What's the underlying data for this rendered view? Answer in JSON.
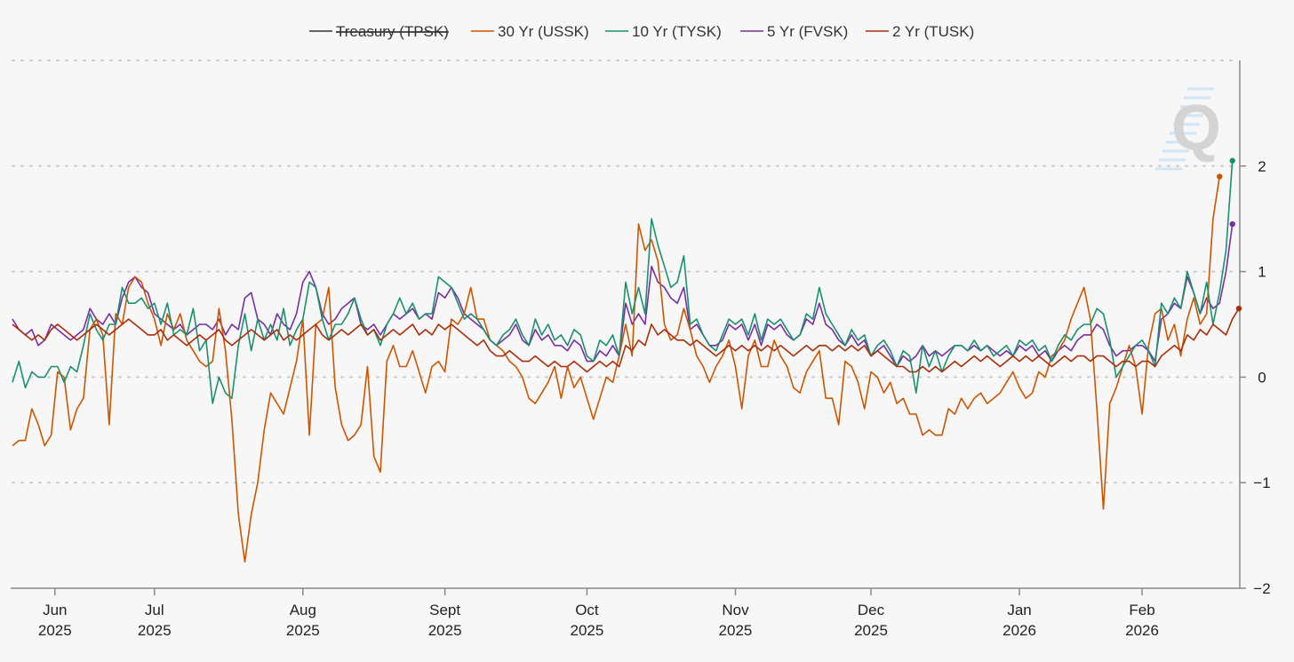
{
  "chart_data": {
    "type": "line",
    "title": "",
    "xlabel": "",
    "ylabel": "",
    "ylim": [
      -2,
      3
    ],
    "y_ticks": [
      2,
      1,
      0,
      -1,
      -2
    ],
    "y_tick_labels": [
      "2",
      "1",
      "0",
      "−1",
      "−2"
    ],
    "x_ticks": [
      {
        "month": "Jun",
        "year": "2025",
        "index": 3
      },
      {
        "month": "Jul",
        "year": "2025",
        "index": 22
      },
      {
        "month": "Aug",
        "year": "2025",
        "index": 45
      },
      {
        "month": "Sept",
        "year": "2025",
        "index": 67
      },
      {
        "month": "Oct",
        "year": "2025",
        "index": 89
      },
      {
        "month": "Nov",
        "year": "2025",
        "index": 112
      },
      {
        "month": "Dec",
        "year": "2025",
        "index": 133
      },
      {
        "month": "Jan",
        "year": "2026",
        "index": 156
      },
      {
        "month": "Feb",
        "year": "2026",
        "index": 175
      }
    ],
    "grid": true,
    "legend_position": "top",
    "watermark": "Q",
    "series": [
      {
        "name": "Treasury (TPSK)",
        "color": "#333333",
        "hidden": true,
        "values": []
      },
      {
        "name": "30 Yr (USSK)",
        "color": "#cc5500",
        "hidden": false,
        "values": [
          -0.65,
          -0.6,
          -0.6,
          -0.3,
          -0.45,
          -0.65,
          -0.55,
          0.05,
          0,
          -0.5,
          -0.3,
          -0.2,
          0.45,
          0.55,
          0.4,
          -0.45,
          0.6,
          0.5,
          0.85,
          0.95,
          0.9,
          0.7,
          0.55,
          0.3,
          0.6,
          0.45,
          0.6,
          0.35,
          0.25,
          0.15,
          0.1,
          0.15,
          0.65,
          0.25,
          -0.4,
          -1.3,
          -1.75,
          -1.3,
          -1.0,
          -0.5,
          -0.15,
          -0.25,
          -0.35,
          -0.1,
          0.15,
          0.55,
          -0.55,
          0.5,
          0.55,
          0.85,
          -0.1,
          -0.45,
          -0.6,
          -0.55,
          -0.45,
          0.1,
          -0.75,
          -0.9,
          0.15,
          0.3,
          0.1,
          0.1,
          0.25,
          0.05,
          -0.15,
          0.1,
          0.15,
          0.05,
          0.55,
          0.5,
          0.6,
          0.85,
          0.55,
          0.55,
          0.35,
          0.3,
          0.25,
          0.15,
          0.1,
          0.0,
          -0.2,
          -0.25,
          -0.15,
          -0.05,
          0.1,
          -0.2,
          0.1,
          -0.1,
          0.0,
          -0.2,
          -0.4,
          -0.2,
          0.0,
          -0.05,
          0.2,
          0.5,
          0.2,
          1.45,
          1.2,
          1.3,
          1.1,
          0.5,
          0.35,
          0.4,
          0.65,
          0.45,
          0.2,
          0.1,
          -0.05,
          0.1,
          0.2,
          0.35,
          0.1,
          -0.3,
          0.2,
          0.35,
          0.1,
          0.1,
          0.35,
          0.2,
          0.1,
          -0.1,
          -0.15,
          0.05,
          0.15,
          0.25,
          -0.2,
          -0.2,
          -0.45,
          0.15,
          0.1,
          -0.05,
          -0.3,
          0.05,
          0.0,
          -0.15,
          -0.05,
          -0.25,
          -0.2,
          -0.35,
          -0.35,
          -0.55,
          -0.5,
          -0.55,
          -0.55,
          -0.3,
          -0.35,
          -0.2,
          -0.3,
          -0.2,
          -0.15,
          -0.25,
          -0.2,
          -0.15,
          -0.05,
          0.05,
          -0.1,
          -0.2,
          -0.15,
          0.05,
          0.0,
          0.2,
          0.25,
          0.35,
          0.55,
          0.7,
          0.85,
          0.55,
          -0.3,
          -1.25,
          -0.25,
          -0.1,
          0.1,
          0.3,
          0.1,
          -0.35,
          0.3,
          0.6,
          0.65,
          0.35,
          0.5,
          0.2,
          0.55,
          0.75,
          0.5,
          0.6,
          1.5,
          1.9
        ]
      },
      {
        "name": "10 Yr (TYSK)",
        "color": "#1a9070",
        "hidden": false,
        "values": [
          -0.05,
          0.15,
          -0.1,
          0.05,
          0.0,
          0.0,
          0.1,
          0.1,
          -0.05,
          0.1,
          0.05,
          0.3,
          0.6,
          0.45,
          0.35,
          0.5,
          0.5,
          0.85,
          0.7,
          0.7,
          0.75,
          0.65,
          0.7,
          0.5,
          0.7,
          0.4,
          0.45,
          0.4,
          0.65,
          0.25,
          0.35,
          -0.25,
          0.0,
          -0.15,
          -0.2,
          0.3,
          0.6,
          0.25,
          0.55,
          0.35,
          0.5,
          0.35,
          0.65,
          0.3,
          0.45,
          0.55,
          0.9,
          0.85,
          0.55,
          0.35,
          0.5,
          0.5,
          0.6,
          0.75,
          0.55,
          0.4,
          0.45,
          0.3,
          0.5,
          0.6,
          0.75,
          0.6,
          0.7,
          0.55,
          0.6,
          0.6,
          0.95,
          0.9,
          0.85,
          0.7,
          0.55,
          0.6,
          0.55,
          0.45,
          0.35,
          0.3,
          0.4,
          0.45,
          0.55,
          0.4,
          0.3,
          0.55,
          0.4,
          0.5,
          0.35,
          0.4,
          0.3,
          0.45,
          0.4,
          0.2,
          0.15,
          0.35,
          0.3,
          0.4,
          0.2,
          0.9,
          0.6,
          0.85,
          0.6,
          1.5,
          1.25,
          1.05,
          0.85,
          0.9,
          1.15,
          0.5,
          0.55,
          0.4,
          0.3,
          0.25,
          0.4,
          0.55,
          0.5,
          0.55,
          0.4,
          0.6,
          0.35,
          0.55,
          0.5,
          0.55,
          0.45,
          0.35,
          0.4,
          0.6,
          0.55,
          0.85,
          0.6,
          0.5,
          0.4,
          0.3,
          0.45,
          0.35,
          0.4,
          0.2,
          0.3,
          0.35,
          0.25,
          0.1,
          0.25,
          0.2,
          -0.15,
          0.3,
          0.1,
          0.25,
          0.05,
          0.2,
          0.3,
          0.3,
          0.25,
          0.35,
          0.25,
          0.3,
          0.2,
          0.25,
          0.3,
          0.2,
          0.35,
          0.3,
          0.35,
          0.25,
          0.3,
          0.15,
          0.3,
          0.4,
          0.35,
          0.45,
          0.5,
          0.5,
          0.65,
          0.6,
          0.35,
          0.0,
          0.1,
          0.2,
          0.3,
          0.35,
          0.25,
          0.1,
          0.7,
          0.6,
          0.75,
          0.65,
          1.0,
          0.8,
          0.6,
          0.9,
          0.5,
          0.8,
          1.2,
          2.05
        ]
      },
      {
        "name": "5 Yr (FVSK)",
        "color": "#7a2ea0",
        "hidden": false,
        "values": [
          0.55,
          0.45,
          0.4,
          0.45,
          0.3,
          0.35,
          0.5,
          0.45,
          0.4,
          0.35,
          0.4,
          0.45,
          0.65,
          0.55,
          0.5,
          0.6,
          0.5,
          0.75,
          0.9,
          0.95,
          0.85,
          0.8,
          0.6,
          0.55,
          0.5,
          0.45,
          0.5,
          0.4,
          0.45,
          0.5,
          0.5,
          0.45,
          0.55,
          0.4,
          0.5,
          0.45,
          0.75,
          0.8,
          0.55,
          0.5,
          0.4,
          0.6,
          0.5,
          0.45,
          0.6,
          0.9,
          1.0,
          0.85,
          0.6,
          0.5,
          0.55,
          0.65,
          0.7,
          0.75,
          0.5,
          0.45,
          0.5,
          0.4,
          0.5,
          0.6,
          0.55,
          0.6,
          0.65,
          0.55,
          0.6,
          0.55,
          0.8,
          0.75,
          0.85,
          0.75,
          0.6,
          0.55,
          0.5,
          0.45,
          0.35,
          0.3,
          0.35,
          0.4,
          0.5,
          0.35,
          0.3,
          0.45,
          0.35,
          0.4,
          0.3,
          0.3,
          0.25,
          0.35,
          0.3,
          0.15,
          0.15,
          0.25,
          0.2,
          0.3,
          0.2,
          0.7,
          0.5,
          0.6,
          0.5,
          1.05,
          0.9,
          0.85,
          0.75,
          0.7,
          0.85,
          0.45,
          0.5,
          0.4,
          0.3,
          0.3,
          0.35,
          0.5,
          0.45,
          0.5,
          0.35,
          0.5,
          0.3,
          0.5,
          0.45,
          0.5,
          0.4,
          0.35,
          0.4,
          0.55,
          0.5,
          0.7,
          0.5,
          0.45,
          0.35,
          0.3,
          0.4,
          0.3,
          0.35,
          0.2,
          0.25,
          0.3,
          0.2,
          0.1,
          0.2,
          0.15,
          0.2,
          0.3,
          0.2,
          0.25,
          0.2,
          0.25,
          0.3,
          0.3,
          0.25,
          0.3,
          0.25,
          0.3,
          0.25,
          0.2,
          0.25,
          0.2,
          0.3,
          0.25,
          0.3,
          0.2,
          0.25,
          0.15,
          0.25,
          0.3,
          0.25,
          0.35,
          0.4,
          0.4,
          0.5,
          0.45,
          0.3,
          0.2,
          0.25,
          0.25,
          0.3,
          0.3,
          0.25,
          0.15,
          0.55,
          0.6,
          0.7,
          0.65,
          0.95,
          0.8,
          0.6,
          0.75,
          0.65,
          0.7,
          1.0,
          1.45
        ]
      },
      {
        "name": "2 Yr (TUSK)",
        "color": "#a82f0a",
        "hidden": false,
        "values": [
          0.5,
          0.45,
          0.4,
          0.35,
          0.4,
          0.35,
          0.45,
          0.5,
          0.45,
          0.4,
          0.35,
          0.4,
          0.45,
          0.5,
          0.45,
          0.4,
          0.45,
          0.5,
          0.55,
          0.5,
          0.45,
          0.4,
          0.4,
          0.45,
          0.35,
          0.4,
          0.35,
          0.3,
          0.35,
          0.4,
          0.35,
          0.4,
          0.45,
          0.35,
          0.3,
          0.35,
          0.4,
          0.45,
          0.4,
          0.35,
          0.4,
          0.45,
          0.35,
          0.4,
          0.35,
          0.4,
          0.45,
          0.5,
          0.4,
          0.35,
          0.4,
          0.45,
          0.4,
          0.45,
          0.5,
          0.4,
          0.45,
          0.35,
          0.4,
          0.45,
          0.4,
          0.45,
          0.5,
          0.4,
          0.45,
          0.4,
          0.5,
          0.45,
          0.5,
          0.45,
          0.4,
          0.35,
          0.3,
          0.35,
          0.25,
          0.2,
          0.2,
          0.25,
          0.2,
          0.15,
          0.15,
          0.2,
          0.15,
          0.1,
          0.15,
          0.1,
          0.1,
          0.15,
          0.1,
          0.05,
          0.1,
          0.15,
          0.1,
          0.15,
          0.1,
          0.3,
          0.25,
          0.35,
          0.3,
          0.5,
          0.4,
          0.45,
          0.4,
          0.35,
          0.35,
          0.3,
          0.35,
          0.3,
          0.25,
          0.2,
          0.25,
          0.3,
          0.25,
          0.3,
          0.25,
          0.3,
          0.25,
          0.3,
          0.25,
          0.3,
          0.25,
          0.2,
          0.25,
          0.3,
          0.25,
          0.3,
          0.3,
          0.25,
          0.3,
          0.25,
          0.3,
          0.25,
          0.3,
          0.2,
          0.25,
          0.2,
          0.15,
          0.1,
          0.1,
          0.05,
          0.05,
          0.1,
          0.05,
          0.1,
          0.05,
          0.1,
          0.15,
          0.1,
          0.15,
          0.2,
          0.15,
          0.2,
          0.15,
          0.1,
          0.15,
          0.2,
          0.15,
          0.2,
          0.15,
          0.2,
          0.15,
          0.1,
          0.15,
          0.2,
          0.15,
          0.2,
          0.2,
          0.15,
          0.2,
          0.2,
          0.15,
          0.1,
          0.15,
          0.15,
          0.1,
          0.15,
          0.15,
          0.1,
          0.2,
          0.25,
          0.3,
          0.25,
          0.4,
          0.35,
          0.45,
          0.4,
          0.5,
          0.45,
          0.4,
          0.55,
          0.65
        ]
      }
    ]
  }
}
